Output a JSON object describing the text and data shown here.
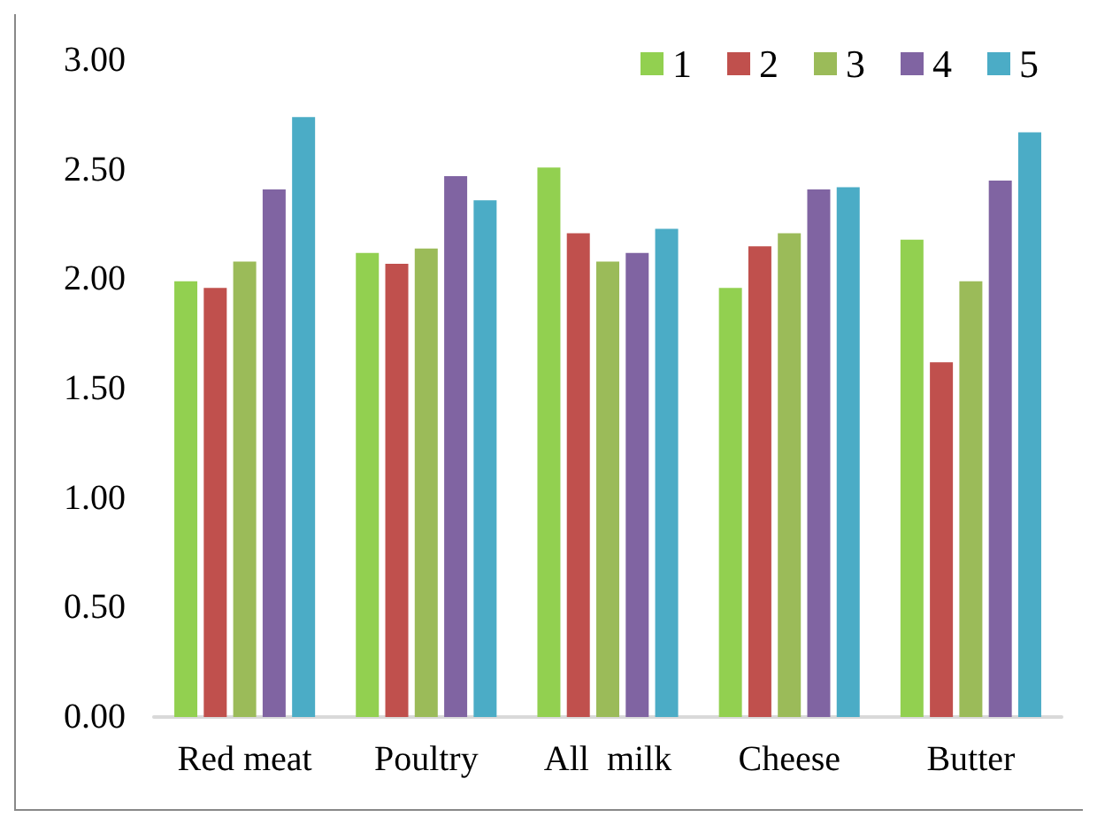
{
  "chart_data": {
    "type": "bar",
    "categories": [
      "Red meat",
      "Poultry",
      "All  milk",
      "Cheese",
      "Butter"
    ],
    "series": [
      {
        "name": "1",
        "color": "#92d050",
        "values": [
          1.99,
          2.12,
          2.51,
          1.96,
          2.18
        ]
      },
      {
        "name": "2",
        "color": "#c0504d",
        "values": [
          1.96,
          2.07,
          2.21,
          2.15,
          1.62
        ]
      },
      {
        "name": "3",
        "color": "#9bbb59",
        "values": [
          2.08,
          2.14,
          2.08,
          2.21,
          1.99
        ]
      },
      {
        "name": "4",
        "color": "#8064a2",
        "values": [
          2.41,
          2.47,
          2.12,
          2.41,
          2.45
        ]
      },
      {
        "name": "5",
        "color": "#4bacc6",
        "values": [
          2.74,
          2.36,
          2.23,
          2.42,
          2.67
        ]
      }
    ],
    "ylim": [
      0,
      3
    ],
    "yticks": [
      {
        "value": 0,
        "label": "0.00"
      },
      {
        "value": 0.5,
        "label": "0.50"
      },
      {
        "value": 1,
        "label": "1.00"
      },
      {
        "value": 1.5,
        "label": "1.50"
      },
      {
        "value": 2,
        "label": "2.00"
      },
      {
        "value": 2.5,
        "label": "2.50"
      },
      {
        "value": 3,
        "label": "3.00"
      }
    ],
    "grid": false,
    "legend": "top right"
  }
}
